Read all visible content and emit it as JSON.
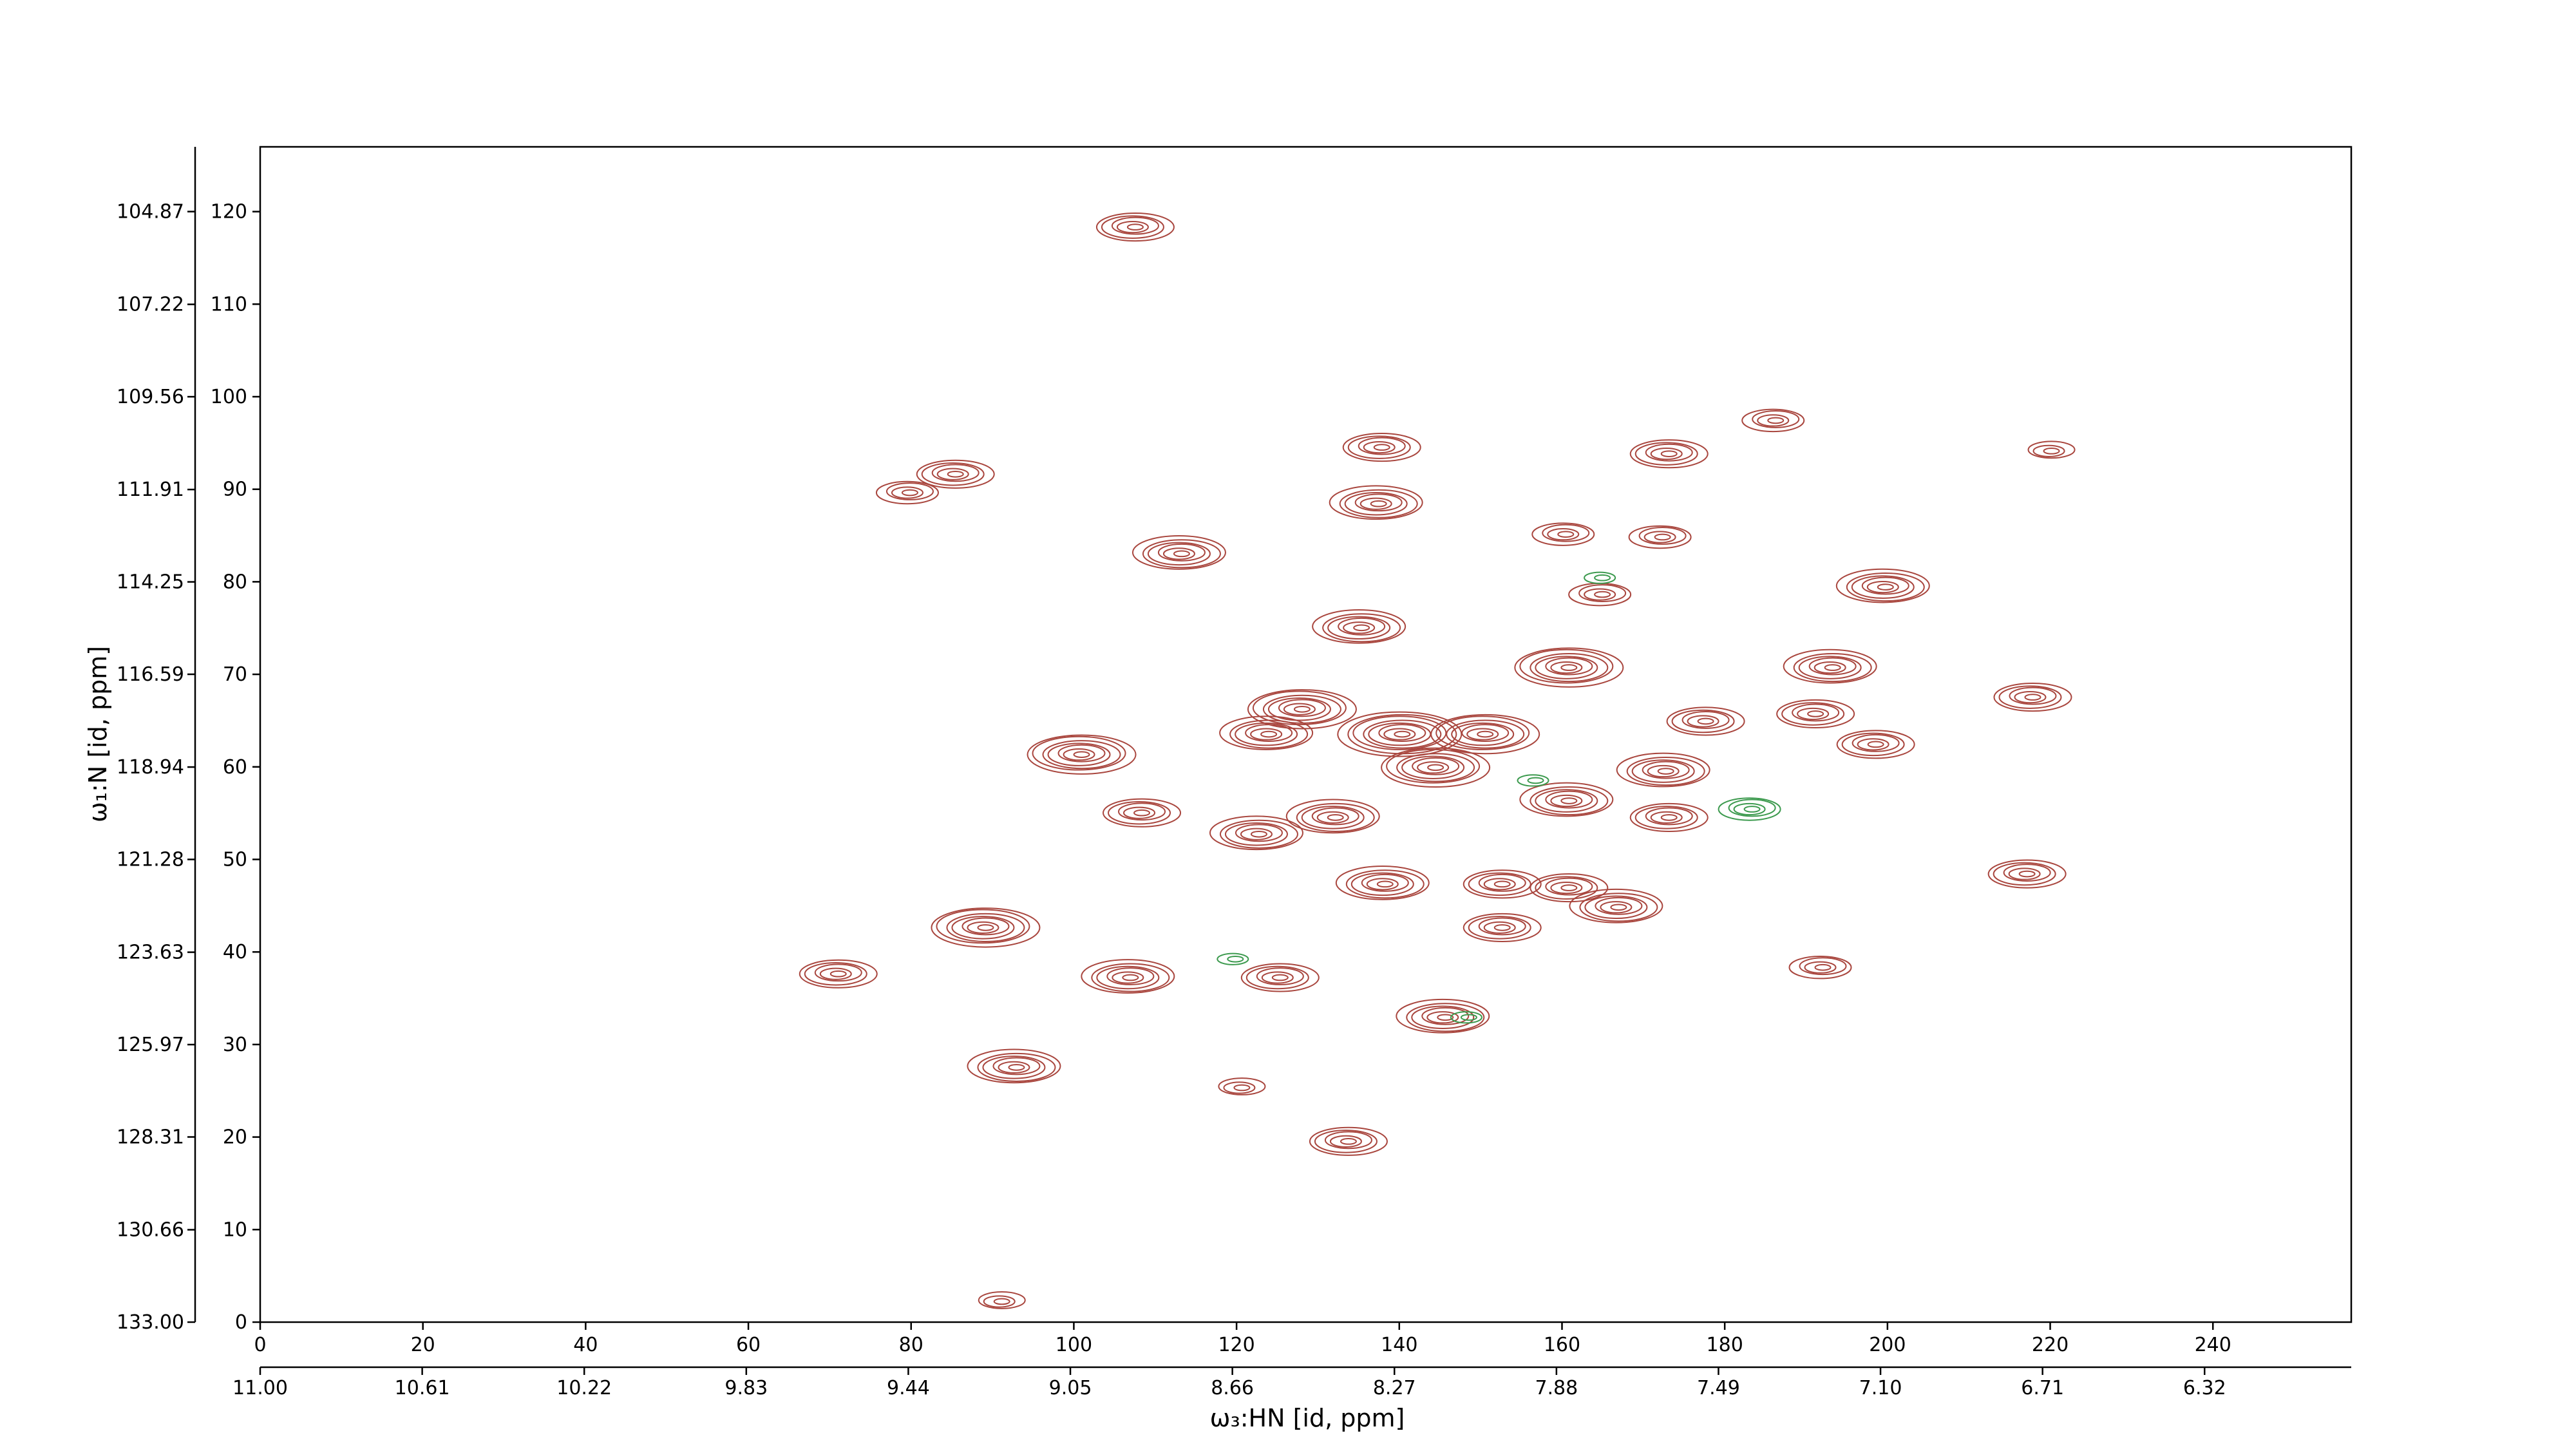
{
  "chart_data": {
    "type": "contour",
    "x_label": "ω₃:HN [id, ppm]",
    "y_label": "ω₁:N [id, ppm]",
    "xlim": [
      0,
      257
    ],
    "xticks": [
      0,
      20,
      40,
      60,
      80,
      100,
      120,
      140,
      160,
      180,
      200,
      220,
      240
    ],
    "ylim": [
      0,
      127
    ],
    "yticks": [
      0,
      10,
      20,
      30,
      40,
      50,
      60,
      70,
      80,
      90,
      100,
      110,
      120
    ],
    "x2lim": [
      11.0,
      5.967
    ],
    "x2ticks": [
      {
        "value": 11.0,
        "label": "11.00"
      },
      {
        "value": 10.61,
        "label": "10.61"
      },
      {
        "value": 10.22,
        "label": "10.22"
      },
      {
        "value": 9.83,
        "label": "9.83"
      },
      {
        "value": 9.44,
        "label": "9.44"
      },
      {
        "value": 9.05,
        "label": "9.05"
      },
      {
        "value": 8.66,
        "label": "8.66"
      },
      {
        "value": 8.27,
        "label": "8.27"
      },
      {
        "value": 7.88,
        "label": "7.88"
      },
      {
        "value": 7.49,
        "label": "7.49"
      },
      {
        "value": 7.1,
        "label": "7.10"
      },
      {
        "value": 6.71,
        "label": "6.71"
      },
      {
        "value": 6.32,
        "label": "6.32"
      }
    ],
    "y2lim": [
      133.0,
      103.23
    ],
    "y2ticks": [
      {
        "value": 133.0,
        "label": "133.00"
      },
      {
        "value": 130.66,
        "label": "130.66"
      },
      {
        "value": 128.31,
        "label": "128.31"
      },
      {
        "value": 125.97,
        "label": "125.97"
      },
      {
        "value": 123.63,
        "label": "123.63"
      },
      {
        "value": 121.28,
        "label": "121.28"
      },
      {
        "value": 118.94,
        "label": "118.94"
      },
      {
        "value": 116.59,
        "label": "116.59"
      },
      {
        "value": 114.25,
        "label": "114.25"
      },
      {
        "value": 111.91,
        "label": "111.91"
      },
      {
        "value": 109.56,
        "label": "109.56"
      },
      {
        "value": 107.22,
        "label": "107.22"
      },
      {
        "value": 104.87,
        "label": "104.87"
      }
    ],
    "series": [
      {
        "color": "#a9463e",
        "x": [
          107.4,
          85.3,
          79.7,
          113.1,
          137.7,
          137.3,
          135.2,
          100.8,
          108.2,
          89,
          70.9,
          106.8,
          92.8,
          125.2,
          133.6,
          120.5,
          145.5,
          160.3,
          173,
          186.1,
          199.6,
          193.1,
          191,
          198.4,
          217.7,
          217,
          191.9,
          127.9,
          140.2,
          150.4,
          160.7,
          172.6,
          177.5,
          164.8,
          172.2,
          152.5,
          160.7,
          166.8,
          152.5,
          173,
          132,
          138.1,
          122.6,
          160.7,
          220,
          91,
          144.3,
          123.8
        ],
        "values": [
          118.4,
          91.7,
          89.7,
          83.1,
          94.6,
          88.5,
          75.1,
          61.4,
          55.1,
          42.7,
          37.7,
          37.3,
          27.6,
          37.3,
          19.6,
          25.4,
          33,
          85.2,
          93.9,
          97.5,
          79.5,
          70.8,
          65.8,
          62.5,
          67.6,
          48.5,
          38.4,
          66.3,
          63.6,
          63.6,
          70.8,
          59.6,
          65,
          78.7,
          84.9,
          47.4,
          47,
          44.9,
          42.7,
          54.6,
          54.6,
          47.4,
          52.8,
          56.4,
          94.2,
          2.3,
          60,
          63.6
        ],
        "levels": [
          5,
          5,
          4,
          6,
          5,
          6,
          6,
          7,
          5,
          7,
          5,
          6,
          6,
          5,
          5,
          3,
          6,
          4,
          5,
          4,
          6,
          6,
          5,
          5,
          5,
          5,
          4,
          7,
          8,
          7,
          7,
          6,
          5,
          4,
          4,
          5,
          5,
          6,
          5,
          5,
          6,
          6,
          6,
          6,
          3,
          3,
          7,
          6
        ]
      },
      {
        "color": "#3c9a4e",
        "x": [
          119.7,
          148.4,
          156.6,
          183.2,
          164.8
        ],
        "values": [
          39.3,
          33,
          58.6,
          55.5,
          80.5
        ],
        "levels": [
          2,
          2,
          2,
          4,
          2
        ]
      }
    ]
  }
}
